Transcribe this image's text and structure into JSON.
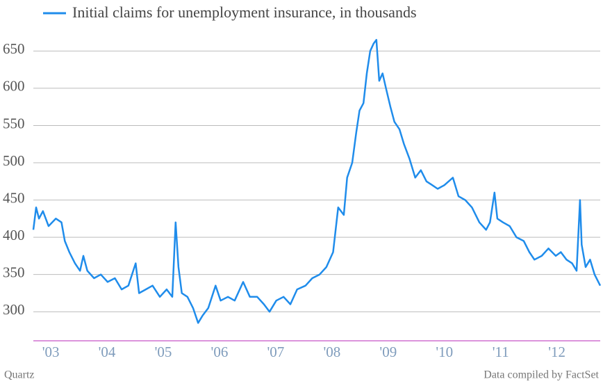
{
  "chart_data": {
    "type": "line",
    "credit": "Quartz",
    "source": "Data compiled by FactSet",
    "x": [
      2002.69,
      2002.74,
      2002.79,
      2002.86,
      2002.96,
      2003.09,
      2003.19,
      2003.25,
      2003.33,
      2003.43,
      2003.52,
      2003.58,
      2003.65,
      2003.77,
      2003.89,
      2004.01,
      2004.14,
      2004.26,
      2004.38,
      2004.51,
      2004.57,
      2004.69,
      2004.81,
      2004.94,
      2005.06,
      2005.16,
      2005.22,
      2005.27,
      2005.33,
      2005.43,
      2005.53,
      2005.62,
      2005.7,
      2005.8,
      2005.93,
      2006.02,
      2006.15,
      2006.27,
      2006.42,
      2006.54,
      2006.67,
      2006.79,
      2006.89,
      2007.01,
      2007.14,
      2007.26,
      2007.38,
      2007.53,
      2007.65,
      2007.78,
      2007.9,
      2008.02,
      2008.11,
      2008.21,
      2008.27,
      2008.36,
      2008.43,
      2008.49,
      2008.56,
      2008.62,
      2008.68,
      2008.74,
      2008.79,
      2008.84,
      2008.9,
      2008.96,
      2009.04,
      2009.11,
      2009.2,
      2009.28,
      2009.38,
      2009.48,
      2009.58,
      2009.68,
      2009.78,
      2009.88,
      2010.0,
      2010.15,
      2010.25,
      2010.37,
      2010.49,
      2010.62,
      2010.74,
      2010.81,
      2010.89,
      2010.94,
      2011.04,
      2011.16,
      2011.28,
      2011.41,
      2011.51,
      2011.6,
      2011.73,
      2011.85,
      2011.98,
      2012.07,
      2012.17,
      2012.27,
      2012.35,
      2012.41,
      2012.44,
      2012.51,
      2012.59,
      2012.67,
      2012.77
    ],
    "series": [
      {
        "name": "Initial claims for unemployment insurance, in thousands",
        "color": "#1f8ceb",
        "values": [
          410,
          440,
          425,
          435,
          415,
          425,
          420,
          395,
          380,
          365,
          355,
          375,
          355,
          345,
          350,
          340,
          345,
          330,
          335,
          365,
          325,
          330,
          335,
          320,
          330,
          320,
          420,
          360,
          325,
          320,
          305,
          285,
          295,
          305,
          335,
          315,
          320,
          315,
          340,
          320,
          320,
          310,
          300,
          315,
          320,
          310,
          330,
          335,
          345,
          350,
          360,
          380,
          440,
          430,
          480,
          500,
          540,
          570,
          580,
          620,
          650,
          660,
          665,
          610,
          620,
          600,
          575,
          555,
          545,
          525,
          505,
          480,
          490,
          475,
          470,
          465,
          470,
          480,
          455,
          450,
          440,
          420,
          410,
          420,
          460,
          425,
          420,
          415,
          400,
          395,
          380,
          370,
          375,
          385,
          375,
          380,
          370,
          365,
          355,
          450,
          390,
          360,
          370,
          350,
          335
        ]
      }
    ],
    "xlim": [
      2002.69,
      2012.77
    ],
    "xticks": [
      {
        "value": 2003,
        "label": "'03"
      },
      {
        "value": 2004,
        "label": "'04"
      },
      {
        "value": 2005,
        "label": "'05"
      },
      {
        "value": 2006,
        "label": "'06"
      },
      {
        "value": 2007,
        "label": "'07"
      },
      {
        "value": 2008,
        "label": "'08"
      },
      {
        "value": 2009,
        "label": "'09"
      },
      {
        "value": 2010,
        "label": "'10"
      },
      {
        "value": 2011,
        "label": "'11"
      },
      {
        "value": 2012,
        "label": "'12"
      }
    ],
    "ylim": [
      261,
      683
    ],
    "yticks": [
      300,
      350,
      400,
      450,
      500,
      550,
      600,
      650
    ],
    "grid": true
  }
}
